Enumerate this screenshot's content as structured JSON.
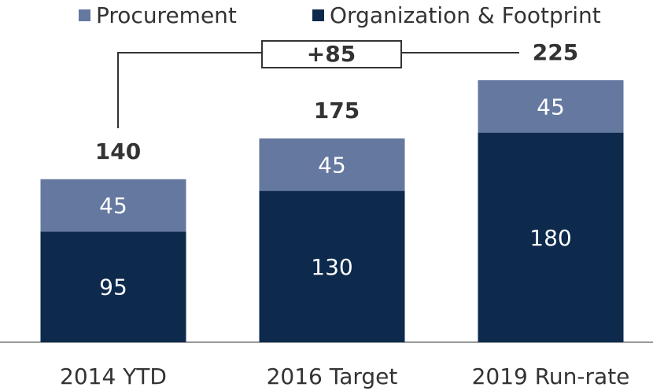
{
  "chart_data": {
    "type": "stacked_bar",
    "categories": [
      "2014 YTD",
      "2016 Target",
      "2019 Run-rate"
    ],
    "series": [
      {
        "name": "Organization & Footprint",
        "color": "#0d2a4d",
        "values": [
          95,
          130,
          180
        ]
      },
      {
        "name": "Procurement",
        "color": "#6478a0",
        "values": [
          45,
          45,
          45
        ]
      }
    ],
    "totals": [
      140,
      175,
      225
    ],
    "annotation": "+85",
    "legend": "top"
  }
}
